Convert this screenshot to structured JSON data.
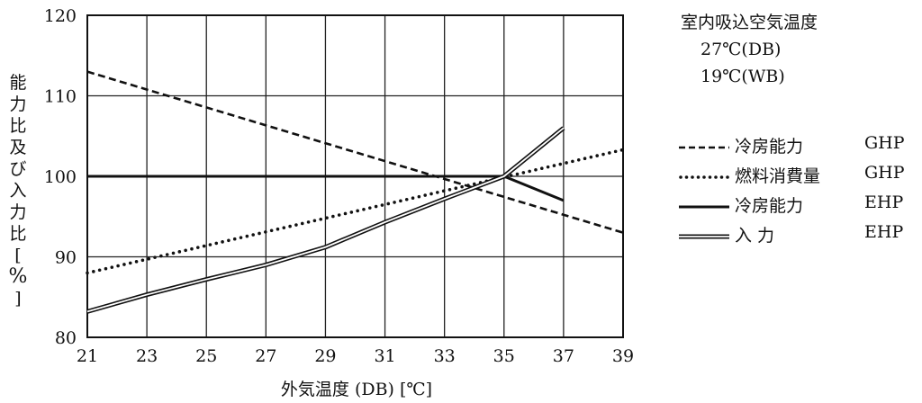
{
  "chart_data": {
    "type": "line",
    "ylabel": "能力比及び入力比 [%]",
    "xlabel": "外気温度 (DB) [℃]",
    "xlim": [
      21,
      39
    ],
    "ylim": [
      80,
      120
    ],
    "x_ticks": [
      "21",
      "23",
      "25",
      "27",
      "29",
      "31",
      "33",
      "35",
      "37",
      "39"
    ],
    "y_ticks": [
      "80",
      "90",
      "100",
      "110",
      "120"
    ],
    "grid": true,
    "legend_position": "right",
    "series": [
      {
        "name": "冷房能力",
        "tag": "GHP",
        "style": "dashed",
        "x": [
          21,
          39
        ],
        "y": [
          113,
          93
        ]
      },
      {
        "name": "燃料消費量",
        "tag": "GHP",
        "style": "dotted",
        "x": [
          21,
          39
        ],
        "y": [
          88,
          103.3
        ]
      },
      {
        "name": "冷房能力",
        "tag": "EHP",
        "style": "solid",
        "x": [
          21,
          35,
          37
        ],
        "y": [
          100,
          100,
          97
        ]
      },
      {
        "name": "入 力",
        "tag": "EHP",
        "style": "double",
        "x": [
          21,
          23,
          25,
          27,
          29,
          31,
          33,
          35,
          37
        ],
        "y": [
          83.2,
          85.3,
          87.2,
          89.0,
          91.2,
          94.3,
          97.2,
          100,
          106
        ]
      }
    ]
  },
  "note": {
    "title": "室内吸込空気温度",
    "line1": "27℃(DB)",
    "line2": "19℃(WB)"
  }
}
